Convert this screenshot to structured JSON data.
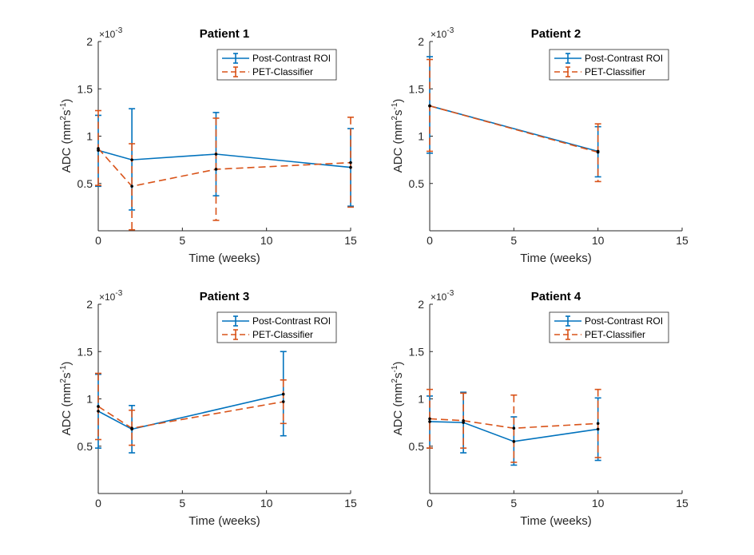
{
  "chart_data": [
    {
      "type": "line",
      "title": "Patient 1",
      "xlabel": "Time (weeks)",
      "ylabel": "ADC (mm²s⁻¹)",
      "ylabel_base": "ADC (mm",
      "ylabel_sup1": "2",
      "ylabel_mid": "s",
      "ylabel_sup2": "-1",
      "ylabel_end": ")",
      "y_multiplier": "×10",
      "y_multiplier_exp": "-3",
      "xlim": [
        0,
        15
      ],
      "ylim": [
        0,
        2
      ],
      "xticks": [
        0,
        5,
        10,
        15
      ],
      "xtick_labels": [
        "0",
        "5",
        "10",
        "15"
      ],
      "yticks": [
        0.5,
        1,
        1.5,
        2
      ],
      "ytick_labels": [
        "0.5",
        "1",
        "1.5",
        "2"
      ],
      "legend": [
        "Post-Contrast ROI",
        "PET-Classifier"
      ],
      "series": [
        {
          "name": "Post-Contrast ROI",
          "color": "#0072BD",
          "dash": "solid",
          "x": [
            0,
            2,
            7,
            15
          ],
          "y": [
            0.85,
            0.75,
            0.81,
            0.67
          ],
          "err_low": [
            0.47,
            0.22,
            0.37,
            0.26
          ],
          "err_high": [
            1.22,
            1.29,
            1.25,
            1.08
          ]
        },
        {
          "name": "PET-Classifier",
          "color": "#D95319",
          "dash": "dashed",
          "x": [
            0,
            2,
            7,
            15
          ],
          "y": [
            0.87,
            0.47,
            0.65,
            0.72
          ],
          "err_low": [
            0.48,
            0.01,
            0.11,
            0.25
          ],
          "err_high": [
            1.27,
            0.92,
            1.19,
            1.2
          ]
        }
      ]
    },
    {
      "type": "line",
      "title": "Patient 2",
      "xlabel": "Time (weeks)",
      "ylabel": "ADC (mm²s⁻¹)",
      "ylabel_base": "ADC (mm",
      "ylabel_sup1": "2",
      "ylabel_mid": "s",
      "ylabel_sup2": "-1",
      "ylabel_end": ")",
      "y_multiplier": "×10",
      "y_multiplier_exp": "-3",
      "xlim": [
        0,
        15
      ],
      "ylim": [
        0,
        2
      ],
      "xticks": [
        0,
        5,
        10,
        15
      ],
      "xtick_labels": [
        "0",
        "5",
        "10",
        "15"
      ],
      "yticks": [
        0.5,
        1,
        1.5,
        2
      ],
      "ytick_labels": [
        "0.5",
        "1",
        "1.5",
        "2"
      ],
      "legend": [
        "Post-Contrast ROI",
        "PET-Classifier"
      ],
      "series": [
        {
          "name": "Post-Contrast ROI",
          "color": "#0072BD",
          "dash": "solid",
          "x": [
            0,
            10
          ],
          "y": [
            1.32,
            0.84
          ],
          "err_low": [
            0.82,
            0.57
          ],
          "err_high": [
            1.84,
            1.1
          ]
        },
        {
          "name": "PET-Classifier",
          "color": "#D95319",
          "dash": "dashed",
          "x": [
            0,
            10
          ],
          "y": [
            1.32,
            0.83
          ],
          "err_low": [
            0.84,
            0.52
          ],
          "err_high": [
            1.81,
            1.13
          ]
        }
      ]
    },
    {
      "type": "line",
      "title": "Patient 3",
      "xlabel": "Time (weeks)",
      "ylabel": "ADC (mm²s⁻¹)",
      "ylabel_base": "ADC (mm",
      "ylabel_sup1": "2",
      "ylabel_mid": "s",
      "ylabel_sup2": "-1",
      "ylabel_end": ")",
      "y_multiplier": "×10",
      "y_multiplier_exp": "-3",
      "xlim": [
        0,
        15
      ],
      "ylim": [
        0,
        2
      ],
      "xticks": [
        0,
        5,
        10,
        15
      ],
      "xtick_labels": [
        "0",
        "5",
        "10",
        "15"
      ],
      "yticks": [
        0.5,
        1,
        1.5,
        2
      ],
      "ytick_labels": [
        "0.5",
        "1",
        "1.5",
        "2"
      ],
      "legend": [
        "Post-Contrast ROI",
        "PET-Classifier"
      ],
      "series": [
        {
          "name": "Post-Contrast ROI",
          "color": "#0072BD",
          "dash": "solid",
          "x": [
            0,
            2,
            11
          ],
          "y": [
            0.87,
            0.68,
            1.05
          ],
          "err_low": [
            0.48,
            0.43,
            0.61
          ],
          "err_high": [
            1.26,
            0.93,
            1.5
          ]
        },
        {
          "name": "PET-Classifier",
          "color": "#D95319",
          "dash": "dashed",
          "x": [
            0,
            2,
            11
          ],
          "y": [
            0.92,
            0.69,
            0.97
          ],
          "err_low": [
            0.57,
            0.51,
            0.74
          ],
          "err_high": [
            1.27,
            0.88,
            1.2
          ]
        }
      ]
    },
    {
      "type": "line",
      "title": "Patient 4",
      "xlabel": "Time (weeks)",
      "ylabel": "ADC (mm²s⁻¹)",
      "ylabel_base": "ADC (mm",
      "ylabel_sup1": "2",
      "ylabel_mid": "s",
      "ylabel_sup2": "-1",
      "ylabel_end": ")",
      "y_multiplier": "×10",
      "y_multiplier_exp": "-3",
      "xlim": [
        0,
        15
      ],
      "ylim": [
        0,
        2
      ],
      "xticks": [
        0,
        5,
        10,
        15
      ],
      "xtick_labels": [
        "0",
        "5",
        "10",
        "15"
      ],
      "yticks": [
        0.5,
        1,
        1.5,
        2
      ],
      "ytick_labels": [
        "0.5",
        "1",
        "1.5",
        "2"
      ],
      "legend": [
        "Post-Contrast ROI",
        "PET-Classifier"
      ],
      "series": [
        {
          "name": "Post-Contrast ROI",
          "color": "#0072BD",
          "dash": "solid",
          "x": [
            0,
            2,
            5,
            10
          ],
          "y": [
            0.76,
            0.75,
            0.55,
            0.68
          ],
          "err_low": [
            0.48,
            0.43,
            0.3,
            0.35
          ],
          "err_high": [
            1.03,
            1.07,
            0.81,
            1.01
          ]
        },
        {
          "name": "PET-Classifier",
          "color": "#D95319",
          "dash": "dashed",
          "x": [
            0,
            2,
            5,
            10
          ],
          "y": [
            0.79,
            0.77,
            0.69,
            0.74
          ],
          "err_low": [
            0.48,
            0.48,
            0.33,
            0.38
          ],
          "err_high": [
            1.1,
            1.06,
            1.04,
            1.1
          ]
        }
      ]
    }
  ]
}
